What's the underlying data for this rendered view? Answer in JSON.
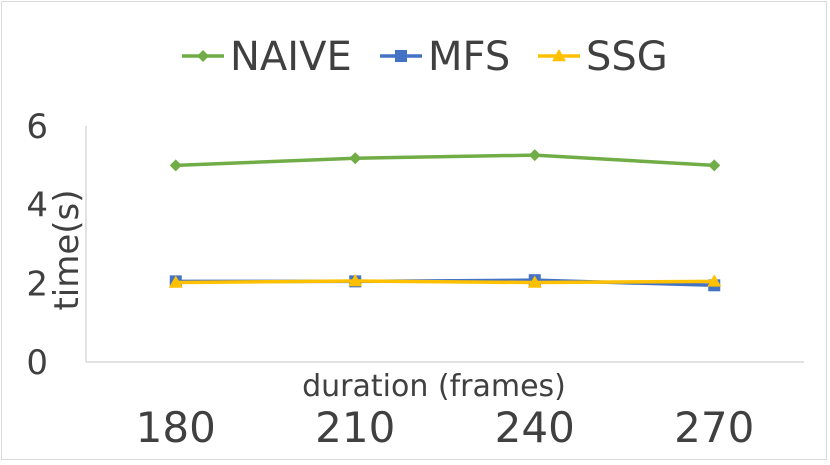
{
  "chart_data": {
    "type": "line",
    "x": [
      180,
      210,
      240,
      270
    ],
    "categories": [
      "180",
      "210",
      "240",
      "270"
    ],
    "xlabel": "duration (frames)",
    "ylabel": "time(s)",
    "ylim": [
      0,
      6
    ],
    "yticks": [
      0,
      2,
      4,
      6
    ],
    "grid": false,
    "legend_position": "top",
    "series": [
      {
        "name": "NAIVE",
        "values": [
          5.0,
          5.18,
          5.26,
          5.0
        ],
        "color": "#70ad47",
        "marker": "diamond"
      },
      {
        "name": "MFS",
        "values": [
          2.05,
          2.05,
          2.08,
          1.95
        ],
        "color": "#4472c4",
        "marker": "square"
      },
      {
        "name": "SSG",
        "values": [
          2.02,
          2.06,
          2.02,
          2.05
        ],
        "color": "#ffc000",
        "marker": "triangle"
      }
    ]
  }
}
